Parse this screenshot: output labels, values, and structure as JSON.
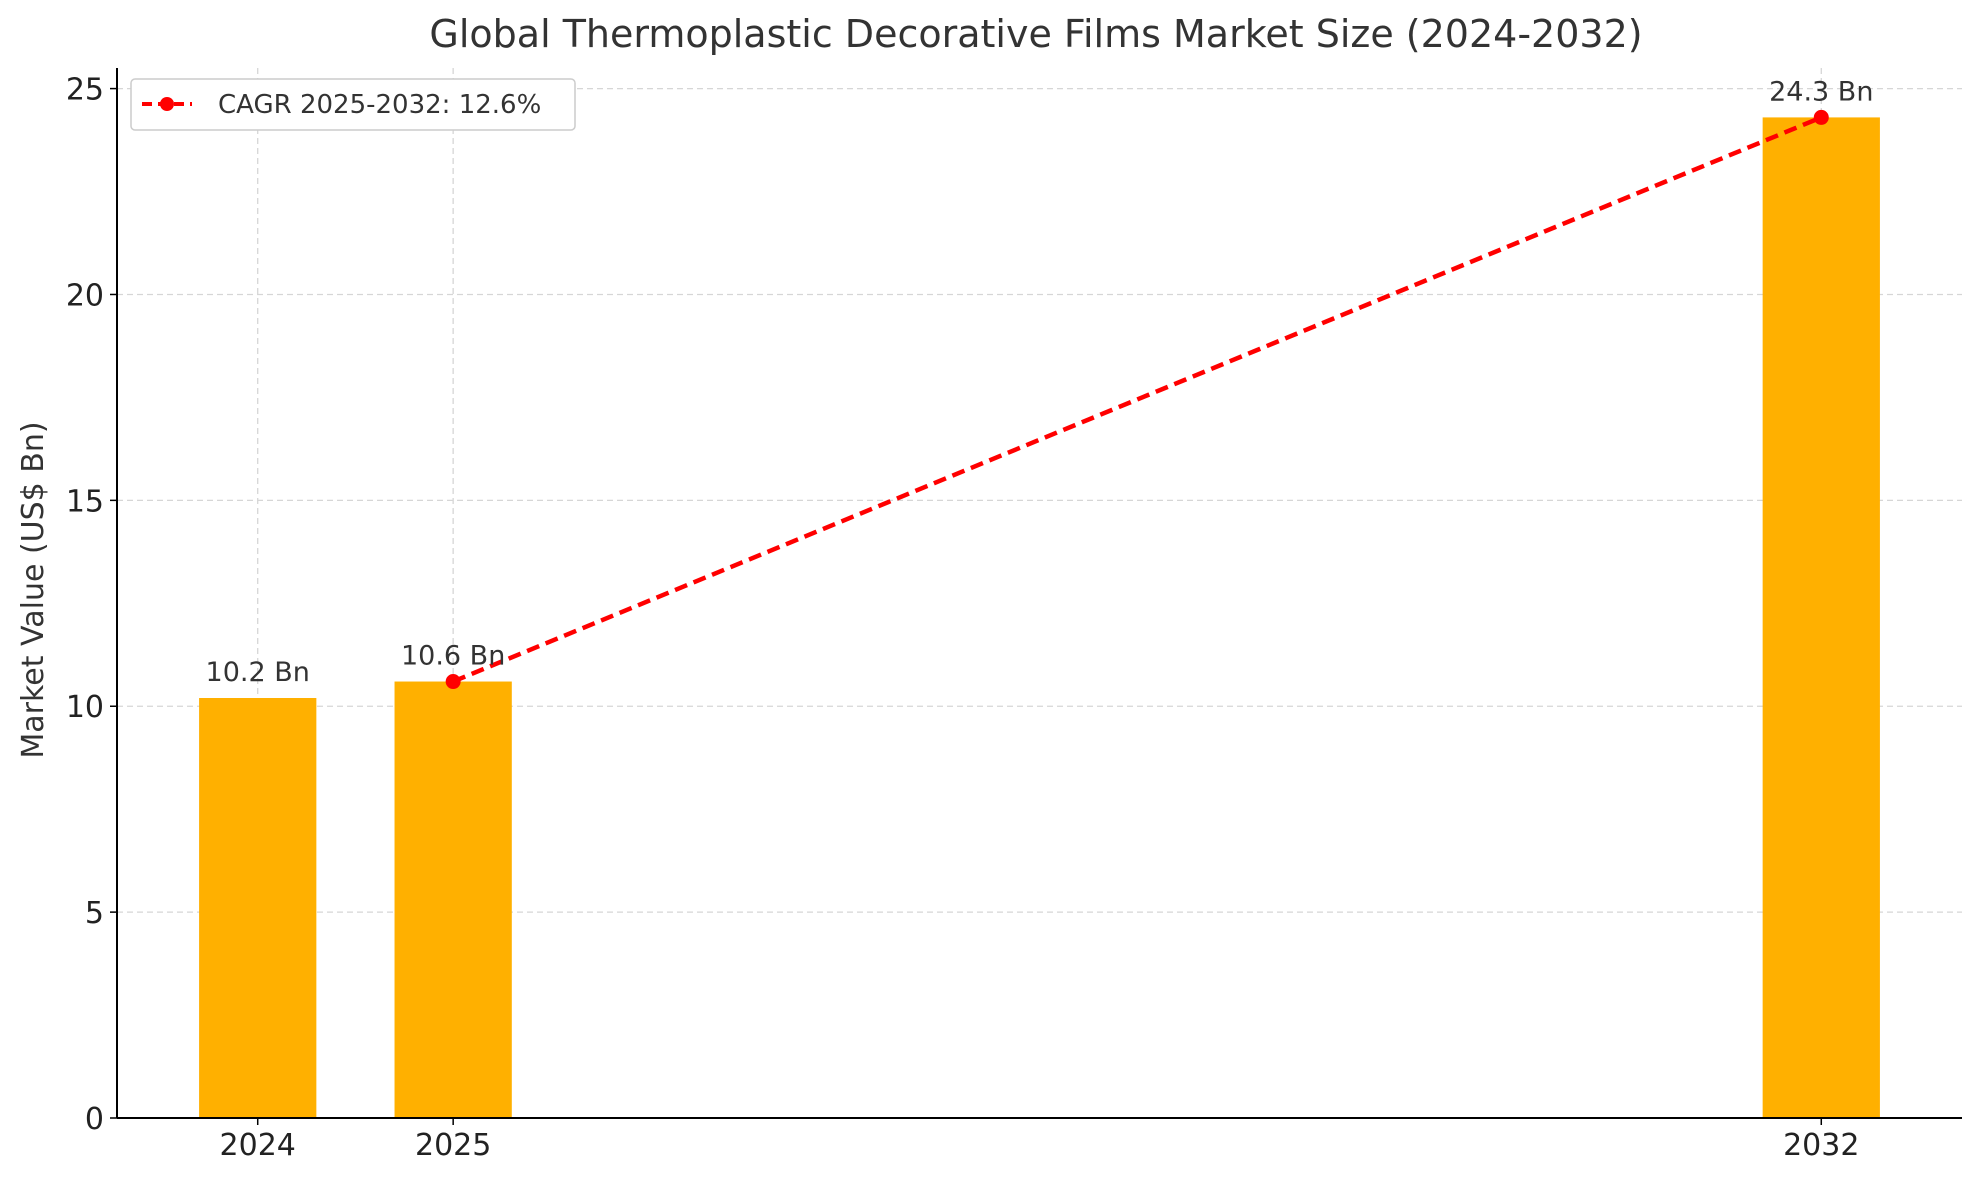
{
  "chart_data": {
    "type": "bar",
    "title": "Global Thermoplastic Decorative Films Market Size (2024-2032)",
    "xlabel": "",
    "ylabel": "Market Value (US$ Bn)",
    "x": [
      2024,
      2025,
      2032
    ],
    "categories": [
      "2024",
      "2025",
      "2032"
    ],
    "values": [
      10.2,
      10.6,
      24.3
    ],
    "data_labels": [
      "10.2 Bn",
      "10.6 Bn",
      "24.3 Bn"
    ],
    "yticks": [
      0,
      5,
      10,
      15,
      20,
      25
    ],
    "ylim": [
      0,
      25.5
    ],
    "xlim": [
      2023.28,
      2032.72
    ],
    "bar_width_years": 0.6,
    "bar_color": "#FFB000",
    "line_series": {
      "name": "CAGR 2025-2032: 12.6%",
      "x": [
        2025,
        2032
      ],
      "y": [
        10.6,
        24.3
      ],
      "color": "#FF0000",
      "style": "dashed",
      "marker": "circle"
    },
    "grid": true,
    "legend_position": "top-left"
  }
}
